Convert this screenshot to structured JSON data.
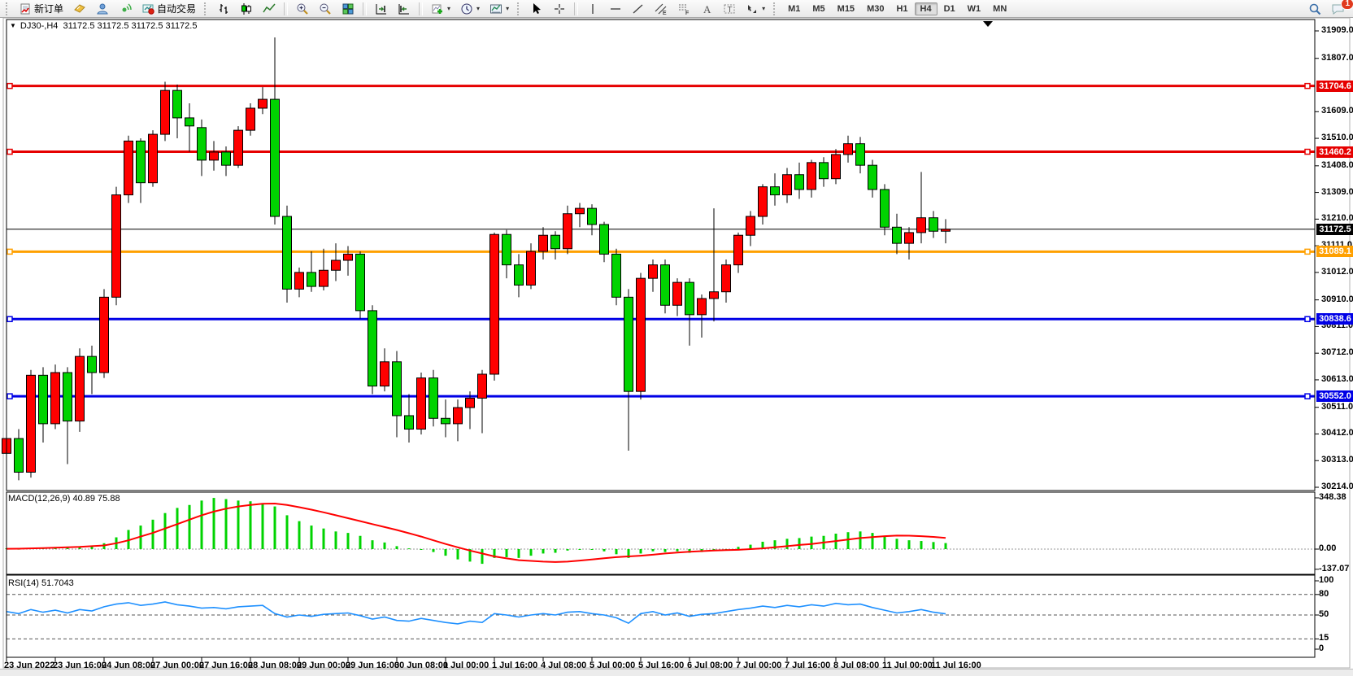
{
  "toolbar": {
    "new_order_label": "新订单",
    "autotrading_label": "自动交易",
    "timeframes": [
      "M1",
      "M5",
      "M15",
      "M30",
      "H1",
      "H4",
      "D1",
      "W1",
      "MN"
    ],
    "active_timeframe": "H4",
    "notification_count": "1",
    "icon_names": [
      "new-order-icon",
      "funds-icon",
      "community-icon",
      "signals-icon",
      "autotrading-icon",
      "bar-chart-icon",
      "candlestick-chart-icon",
      "line-chart-icon",
      "zoom-in-icon",
      "zoom-out-icon",
      "tile-windows-icon",
      "auto-scroll-icon",
      "chart-shift-icon",
      "indicators-add-icon",
      "periods-clock-icon",
      "templates-icon",
      "cursor-icon",
      "crosshair-icon",
      "vertical-line-icon",
      "horizontal-line-icon",
      "trendline-icon",
      "equidistant-channel-icon",
      "fibonacci-icon",
      "text-icon",
      "text-label-icon",
      "arrows-shapes-icon",
      "search-icon",
      "chat-bubble-icon"
    ]
  },
  "chart_header": {
    "symbol_period": "DJ30-,H4",
    "quotes": "31172.5 31172.5 31172.5 31172.5"
  },
  "indicators": {
    "macd_label": "MACD(12,26,9) 40.89 75.88",
    "rsi_label": "RSI(14) 51.7043"
  },
  "price_axis": {
    "ticks": [
      "31909.0",
      "31807.0",
      "31609.0",
      "31510.0",
      "31408.0",
      "31309.0",
      "31210.0",
      "31111.0",
      "31012.0",
      "30910.0",
      "30811.0",
      "30712.0",
      "30613.0",
      "30511.0",
      "30412.0",
      "30313.0",
      "30214.0"
    ]
  },
  "levels": [
    {
      "label": "31704.6",
      "price": 31704.6,
      "color": "#e60000",
      "width": 3,
      "badge": true,
      "markers": true
    },
    {
      "label": "31460.2",
      "price": 31460.2,
      "color": "#e60000",
      "width": 3,
      "badge": true,
      "markers": true
    },
    {
      "label": "31172.5",
      "price": 31172.5,
      "color": "#000000",
      "width": 1,
      "badge": true,
      "markers": false
    },
    {
      "label": "31089.1",
      "price": 31089.1,
      "color": "#ffa000",
      "width": 3,
      "badge": true,
      "markers": true
    },
    {
      "label": "30838.6",
      "price": 30838.6,
      "color": "#0000e6",
      "width": 3,
      "badge": true,
      "markers": true
    },
    {
      "label": "30552.0",
      "price": 30552.0,
      "color": "#0000e6",
      "width": 3,
      "badge": true,
      "markers": true
    }
  ],
  "time_axis": {
    "labels": [
      "23 Jun 2022",
      "23 Jun 16:00",
      "24 Jun 08:00",
      "27 Jun 00:00",
      "27 Jun 16:00",
      "28 Jun 08:00",
      "29 Jun 00:00",
      "29 Jun 16:00",
      "30 Jun 08:00",
      "1 Jul 00:00",
      "1 Jul 16:00",
      "4 Jul 08:00",
      "5 Jul 00:00",
      "5 Jul 16:00",
      "6 Jul 08:00",
      "7 Jul 00:00",
      "7 Jul 16:00",
      "8 Jul 08:00",
      "11 Jul 00:00",
      "11 Jul 16:00"
    ]
  },
  "chart_data": [
    {
      "type": "candlestick",
      "title": "DJ30-,H4",
      "timeframe": "H4",
      "grid": false,
      "ylim": [
        30214,
        31909
      ],
      "up_color": "#ff0000",
      "down_color": "#00d300",
      "x_labels_every_n_bars": 4,
      "last_price": 31172.5,
      "ohlc": [
        [
          30340,
          30410,
          30300,
          30395
        ],
        [
          30395,
          30430,
          30240,
          30270
        ],
        [
          30270,
          30650,
          30250,
          30630
        ],
        [
          30630,
          30660,
          30380,
          30450
        ],
        [
          30450,
          30670,
          30430,
          30640
        ],
        [
          30640,
          30660,
          30300,
          30460
        ],
        [
          30460,
          30730,
          30420,
          30700
        ],
        [
          30700,
          30740,
          30560,
          30640
        ],
        [
          30640,
          30950,
          30620,
          30920
        ],
        [
          30920,
          31330,
          30890,
          31300
        ],
        [
          31300,
          31520,
          31270,
          31500
        ],
        [
          31500,
          31510,
          31270,
          31345
        ],
        [
          31345,
          31540,
          31330,
          31525
        ],
        [
          31525,
          31720,
          31500,
          31688
        ],
        [
          31688,
          31710,
          31510,
          31586
        ],
        [
          31586,
          31640,
          31460,
          31556
        ],
        [
          31550,
          31580,
          31370,
          31429
        ],
        [
          31429,
          31500,
          31390,
          31459
        ],
        [
          31459,
          31480,
          31370,
          31410
        ],
        [
          31410,
          31555,
          31400,
          31540
        ],
        [
          31540,
          31640,
          31520,
          31622
        ],
        [
          31622,
          31700,
          31600,
          31655
        ],
        [
          31655,
          31885,
          31190,
          31220
        ],
        [
          31220,
          31260,
          30900,
          30950
        ],
        [
          30950,
          31030,
          30920,
          31012
        ],
        [
          31012,
          31090,
          30940,
          30960
        ],
        [
          30960,
          31100,
          30945,
          31020
        ],
        [
          31020,
          31120,
          30980,
          31057
        ],
        [
          31057,
          31110,
          31000,
          31080
        ],
        [
          31080,
          31090,
          30840,
          30870
        ],
        [
          30870,
          30890,
          30560,
          30590
        ],
        [
          30590,
          30730,
          30570,
          30680
        ],
        [
          30680,
          30720,
          30400,
          30480
        ],
        [
          30480,
          30560,
          30380,
          30430
        ],
        [
          30430,
          30640,
          30410,
          30620
        ],
        [
          30620,
          30650,
          30440,
          30470
        ],
        [
          30470,
          30540,
          30400,
          30450
        ],
        [
          30450,
          30540,
          30385,
          30510
        ],
        [
          30510,
          30570,
          30430,
          30545
        ],
        [
          30545,
          30650,
          30415,
          30634
        ],
        [
          30634,
          31160,
          30610,
          31153
        ],
        [
          31153,
          31170,
          30990,
          31040
        ],
        [
          31040,
          31080,
          30920,
          30965
        ],
        [
          30965,
          31120,
          30950,
          31090
        ],
        [
          31090,
          31180,
          31060,
          31150
        ],
        [
          31150,
          31165,
          31060,
          31100
        ],
        [
          31100,
          31260,
          31080,
          31230
        ],
        [
          31230,
          31270,
          31180,
          31250
        ],
        [
          31250,
          31265,
          31150,
          31190
        ],
        [
          31190,
          31200,
          31050,
          31080
        ],
        [
          31080,
          31100,
          30890,
          30920
        ],
        [
          30920,
          30950,
          30350,
          30570
        ],
        [
          30570,
          31010,
          30540,
          30990
        ],
        [
          30990,
          31060,
          30940,
          31040
        ],
        [
          31040,
          31060,
          30860,
          30890
        ],
        [
          30890,
          30990,
          30850,
          30975
        ],
        [
          30975,
          30990,
          30740,
          30855
        ],
        [
          30855,
          30930,
          30770,
          30915
        ],
        [
          30915,
          31250,
          30830,
          30940
        ],
        [
          30940,
          31060,
          30900,
          31040
        ],
        [
          31040,
          31160,
          31010,
          31150
        ],
        [
          31150,
          31240,
          31110,
          31220
        ],
        [
          31220,
          31340,
          31190,
          31330
        ],
        [
          31330,
          31380,
          31260,
          31300
        ],
        [
          31300,
          31400,
          31270,
          31375
        ],
        [
          31375,
          31420,
          31285,
          31320
        ],
        [
          31320,
          31430,
          31290,
          31420
        ],
        [
          31420,
          31440,
          31330,
          31360
        ],
        [
          31360,
          31470,
          31340,
          31450
        ],
        [
          31450,
          31520,
          31420,
          31490
        ],
        [
          31490,
          31515,
          31380,
          31410
        ],
        [
          31410,
          31430,
          31290,
          31320
        ],
        [
          31320,
          31340,
          31150,
          31180
        ],
        [
          31180,
          31230,
          31080,
          31120
        ],
        [
          31120,
          31180,
          31060,
          31160
        ],
        [
          31160,
          31385,
          31120,
          31215
        ],
        [
          31215,
          31240,
          31140,
          31165
        ],
        [
          31165,
          31210,
          31120,
          31172.5
        ]
      ]
    },
    {
      "type": "bar",
      "name": "MACD(12,26,9)",
      "current_main": 40.89,
      "current_signal": 75.88,
      "histogram_color": "#00d300",
      "signal_color": "#ff0000",
      "y_ticks": [
        "348.38",
        "0.00",
        "-137.07"
      ],
      "values": [
        5,
        2,
        8,
        10,
        14,
        12,
        18,
        22,
        40,
        80,
        130,
        160,
        200,
        245,
        280,
        300,
        330,
        348,
        340,
        330,
        325,
        310,
        290,
        230,
        190,
        160,
        140,
        120,
        110,
        90,
        60,
        45,
        20,
        5,
        -5,
        -20,
        -45,
        -70,
        -85,
        -100,
        -60,
        -55,
        -60,
        -45,
        -30,
        -25,
        -10,
        0,
        -5,
        -15,
        -35,
        -60,
        -30,
        -15,
        -20,
        -15,
        -25,
        -20,
        -10,
        0,
        15,
        30,
        50,
        60,
        70,
        75,
        85,
        90,
        105,
        115,
        120,
        110,
        90,
        70,
        60,
        55,
        48,
        41
      ],
      "signal": [
        2,
        3,
        5,
        7,
        10,
        12,
        15,
        20,
        25,
        40,
        60,
        85,
        110,
        140,
        170,
        200,
        230,
        255,
        275,
        290,
        300,
        308,
        310,
        300,
        285,
        268,
        250,
        230,
        210,
        190,
        170,
        150,
        130,
        108,
        85,
        60,
        35,
        12,
        -10,
        -30,
        -50,
        -63,
        -75,
        -80,
        -85,
        -88,
        -85,
        -78,
        -70,
        -62,
        -55,
        -50,
        -45,
        -38,
        -30,
        -24,
        -18,
        -14,
        -10,
        -7,
        -5,
        0,
        5,
        12,
        20,
        28,
        35,
        45,
        55,
        65,
        75,
        82,
        88,
        92,
        91,
        88,
        83,
        76
      ]
    },
    {
      "type": "line",
      "name": "RSI(14)",
      "current": 51.7043,
      "line_color": "#1e90ff",
      "levels": [
        80,
        50,
        15
      ],
      "y_ticks": [
        "100",
        "80",
        "50",
        "15",
        "0"
      ],
      "values": [
        55,
        52,
        58,
        54,
        57,
        53,
        58,
        56,
        62,
        66,
        68,
        64,
        66,
        69,
        65,
        63,
        60,
        61,
        59,
        62,
        63,
        64,
        52,
        47,
        50,
        48,
        51,
        52,
        53,
        49,
        44,
        47,
        42,
        41,
        45,
        42,
        39,
        37,
        41,
        39,
        52,
        50,
        47,
        50,
        52,
        50,
        54,
        55,
        52,
        50,
        46,
        38,
        52,
        55,
        50,
        53,
        48,
        51,
        52,
        55,
        58,
        60,
        63,
        61,
        64,
        62,
        65,
        63,
        67,
        65,
        66,
        61,
        57,
        53,
        55,
        58,
        54,
        51.7
      ]
    }
  ]
}
